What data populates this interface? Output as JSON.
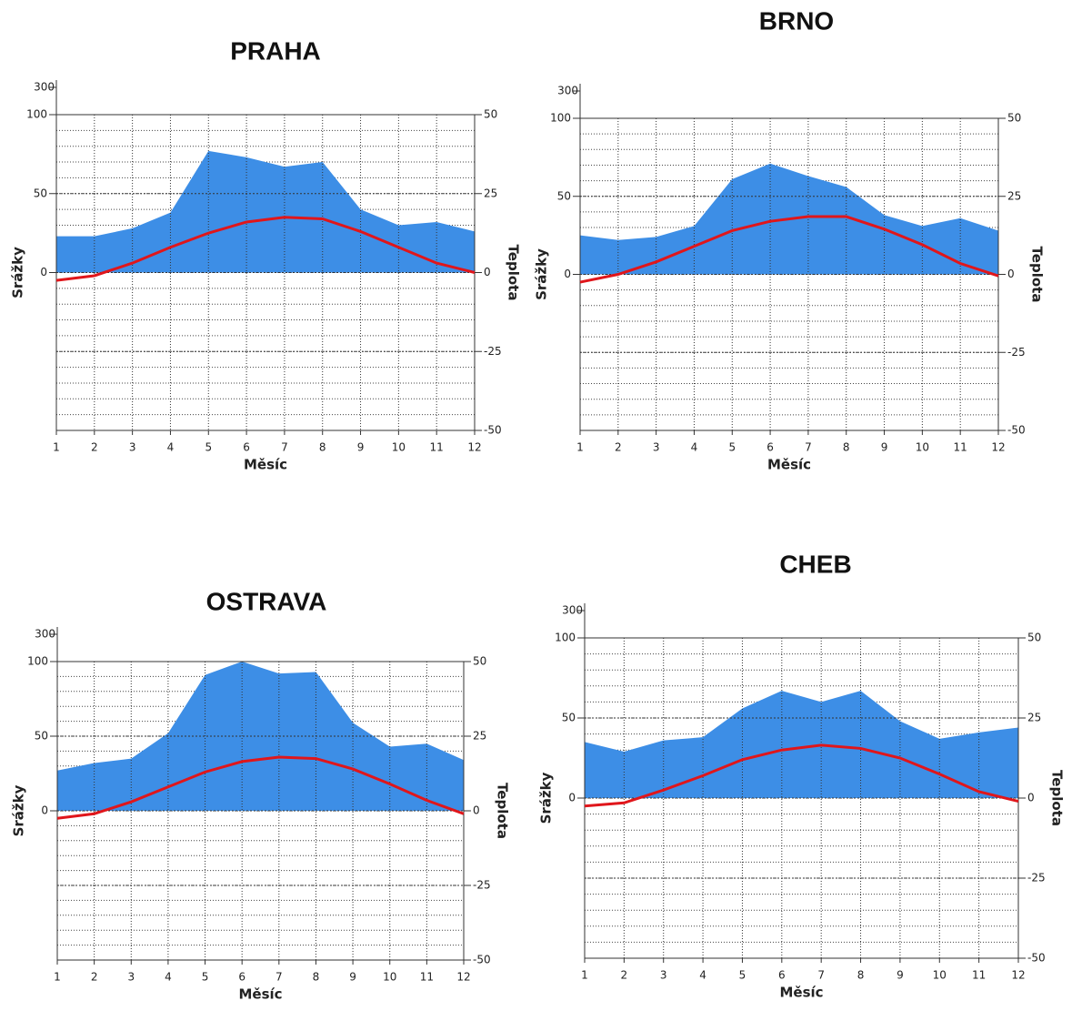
{
  "chart_data": [
    {
      "type": "climate",
      "title": "PRAHA",
      "xlabel": "Měsíc",
      "ylabel": "Srážky",
      "y2label": "Teplota",
      "x": [
        1,
        2,
        3,
        4,
        5,
        6,
        7,
        8,
        9,
        10,
        11,
        12
      ],
      "xlim": [
        1,
        12
      ],
      "xticks": [
        1,
        2,
        3,
        4,
        5,
        6,
        7,
        8,
        9,
        10,
        11,
        12
      ],
      "ylim": [
        -100,
        100
      ],
      "yticks": [
        0,
        50,
        100
      ],
      "ybreak_tick": 300,
      "y2lim": [
        -50,
        50
      ],
      "y2ticks": [
        -50,
        -25,
        0,
        25,
        50
      ],
      "grid": true,
      "series": [
        {
          "color": "#3d8ee6",
          "values": [
            23,
            23,
            28,
            38,
            77,
            73,
            67,
            70,
            40,
            30,
            32,
            26
          ]
        },
        {
          "color": "#e0161b",
          "axis": "y2",
          "values": [
            -2.5,
            -1,
            3,
            8,
            12.5,
            16,
            17.5,
            17,
            13,
            8,
            3,
            0
          ]
        }
      ]
    },
    {
      "type": "climate",
      "title": "BRNO",
      "xlabel": "Měsíc",
      "ylabel": "Srážky",
      "y2label": "Teplota",
      "x": [
        1,
        2,
        3,
        4,
        5,
        6,
        7,
        8,
        9,
        10,
        11,
        12
      ],
      "xlim": [
        1,
        12
      ],
      "xticks": [
        1,
        2,
        3,
        4,
        5,
        6,
        7,
        8,
        9,
        10,
        11,
        12
      ],
      "ylim": [
        -100,
        100
      ],
      "yticks": [
        0,
        50,
        100
      ],
      "ybreak_tick": 300,
      "y2lim": [
        -50,
        50
      ],
      "y2ticks": [
        -50,
        -25,
        0,
        25,
        50
      ],
      "grid": true,
      "series": [
        {
          "color": "#3d8ee6",
          "values": [
            25,
            22,
            24,
            31,
            61,
            71,
            63,
            56,
            38,
            31,
            36,
            28
          ]
        },
        {
          "color": "#e0161b",
          "axis": "y2",
          "values": [
            -2.5,
            0,
            4,
            9,
            14,
            17,
            18.5,
            18.5,
            14.5,
            9.5,
            3.5,
            -0.5
          ]
        }
      ]
    },
    {
      "type": "climate",
      "title": "OSTRAVA",
      "xlabel": "Měsíc",
      "ylabel": "Srážky",
      "y2label": "Teplota",
      "x": [
        1,
        2,
        3,
        4,
        5,
        6,
        7,
        8,
        9,
        10,
        11,
        12
      ],
      "xlim": [
        1,
        12
      ],
      "xticks": [
        1,
        2,
        3,
        4,
        5,
        6,
        7,
        8,
        9,
        10,
        11,
        12
      ],
      "ylim": [
        -100,
        100
      ],
      "yticks": [
        0,
        50,
        100
      ],
      "ybreak_tick": 300,
      "y2lim": [
        -50,
        50
      ],
      "y2ticks": [
        -50,
        -25,
        0,
        25,
        50
      ],
      "grid": true,
      "series": [
        {
          "color": "#3d8ee6",
          "values": [
            27,
            32,
            35,
            52,
            91,
            100,
            92,
            93,
            59,
            43,
            45,
            34
          ]
        },
        {
          "color": "#e0161b",
          "axis": "y2",
          "values": [
            -2.5,
            -1,
            3,
            8,
            13,
            16.5,
            18,
            17.5,
            14,
            9,
            3.5,
            -1
          ]
        }
      ]
    },
    {
      "type": "climate",
      "title": "CHEB",
      "xlabel": "Měsíc",
      "ylabel": "Srážky",
      "y2label": "Teplota",
      "x": [
        1,
        2,
        3,
        4,
        5,
        6,
        7,
        8,
        9,
        10,
        11,
        12
      ],
      "xlim": [
        1,
        12
      ],
      "xticks": [
        1,
        2,
        3,
        4,
        5,
        6,
        7,
        8,
        9,
        10,
        11,
        12
      ],
      "ylim": [
        -100,
        100
      ],
      "yticks": [
        0,
        50,
        100
      ],
      "ybreak_tick": 300,
      "y2lim": [
        -50,
        50
      ],
      "y2ticks": [
        -50,
        -25,
        0,
        25,
        50
      ],
      "grid": true,
      "series": [
        {
          "color": "#3d8ee6",
          "values": [
            35,
            29,
            36,
            38,
            56,
            67,
            60,
            67,
            48,
            37,
            41,
            44
          ]
        },
        {
          "color": "#e0161b",
          "axis": "y2",
          "values": [
            -2.5,
            -1.5,
            2.5,
            7,
            12,
            15,
            16.5,
            15.5,
            12.5,
            7.5,
            2,
            -1
          ]
        }
      ]
    }
  ]
}
